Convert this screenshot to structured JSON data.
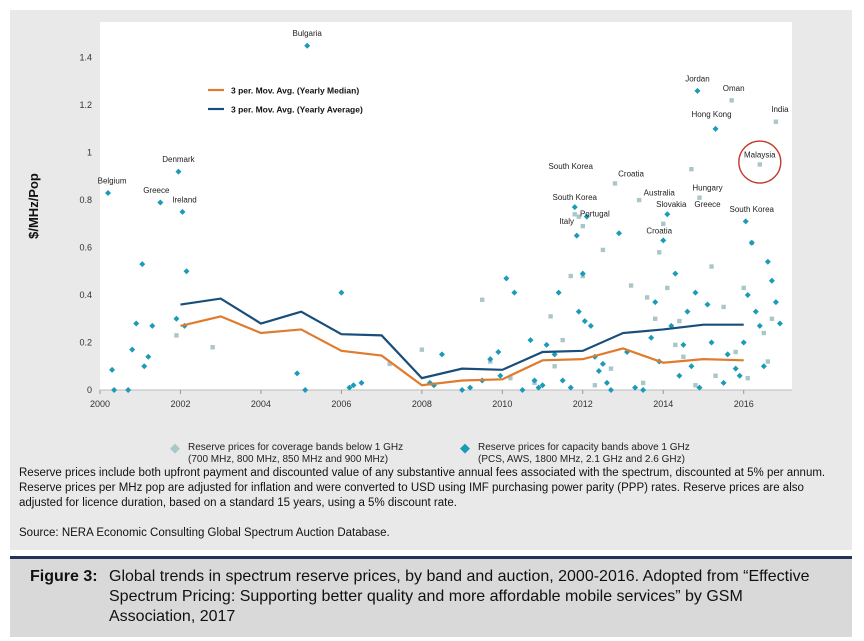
{
  "chart_data": {
    "type": "scatter",
    "ylabel": "$/MHz/Pop",
    "xlabel": "",
    "xlim": [
      2000,
      2017.2
    ],
    "ylim": [
      0,
      1.55
    ],
    "x_ticks": [
      "2000",
      "2002",
      "2004",
      "2006",
      "2008",
      "2010",
      "2012",
      "2014",
      "2016"
    ],
    "y_ticks": [
      "0",
      "0.2",
      "0.4",
      "0.6",
      "0.8",
      "1",
      "1.2",
      "1.4"
    ],
    "grid": false,
    "colors": {
      "orange": "#e07b2e",
      "navy": "#1a4e7a",
      "coverage": "#a9c7c9",
      "capacity": "#1b9bb8",
      "circle": "#c0392b"
    },
    "lines": [
      {
        "name": "3 per. Mov. Avg. (Yearly Median)",
        "color": "#e07b2e",
        "x": [
          2000,
          2001,
          2002,
          2003,
          2004,
          2005,
          2006,
          2007,
          2008,
          2009,
          2010,
          2011,
          2012,
          2013,
          2014,
          2015,
          2016
        ],
        "y": [
          null,
          null,
          0.27,
          0.31,
          0.24,
          0.255,
          0.165,
          0.145,
          0.02,
          0.04,
          0.045,
          0.125,
          0.13,
          0.175,
          0.115,
          0.13,
          0.125
        ]
      },
      {
        "name": "3 per. Mov. Avg. (Yearly Average)",
        "color": "#1a4e7a",
        "x": [
          2000,
          2001,
          2002,
          2003,
          2004,
          2005,
          2006,
          2007,
          2008,
          2009,
          2010,
          2011,
          2012,
          2013,
          2014,
          2015,
          2016
        ],
        "y": [
          null,
          null,
          0.36,
          0.385,
          0.28,
          0.33,
          0.235,
          0.23,
          0.05,
          0.09,
          0.085,
          0.16,
          0.165,
          0.24,
          0.255,
          0.275,
          0.275
        ]
      }
    ],
    "series": [
      {
        "name": "Reserve prices for coverage bands below 1 GHz",
        "marker": "square",
        "points": [
          [
            2001.9,
            0.23
          ],
          [
            2002.8,
            0.18
          ],
          [
            2007.2,
            0.11
          ],
          [
            2008,
            0.17
          ],
          [
            2009.5,
            0.38
          ],
          [
            2009.7,
            0.12
          ],
          [
            2010.2,
            0.05
          ],
          [
            2011.2,
            0.31
          ],
          [
            2011.3,
            0.1
          ],
          [
            2011.5,
            0.21
          ],
          [
            2011.7,
            0.48
          ],
          [
            2011.8,
            0.74
          ],
          [
            2011.9,
            0.73
          ],
          [
            2012,
            0.69
          ],
          [
            2012,
            0.48
          ],
          [
            2012.5,
            0.59
          ],
          [
            2012.7,
            0.09
          ],
          [
            2012.8,
            0.87
          ],
          [
            2013.2,
            0.44
          ],
          [
            2013.4,
            0.8
          ],
          [
            2013.6,
            0.39
          ],
          [
            2013.8,
            0.3
          ],
          [
            2013.9,
            0.58
          ],
          [
            2014,
            0.7
          ],
          [
            2014.1,
            0.43
          ],
          [
            2014.3,
            0.19
          ],
          [
            2014.4,
            0.29
          ],
          [
            2014.5,
            0.14
          ],
          [
            2014.7,
            0.93
          ],
          [
            2014.9,
            0.81
          ],
          [
            2015.2,
            0.52
          ],
          [
            2015.3,
            0.06
          ],
          [
            2015.5,
            0.35
          ],
          [
            2015.7,
            1.22
          ],
          [
            2015.8,
            0.16
          ],
          [
            2016,
            0.43
          ],
          [
            2016.2,
            0.62
          ],
          [
            2016.4,
            0.95
          ],
          [
            2016.5,
            0.24
          ],
          [
            2016.6,
            0.12
          ],
          [
            2016.7,
            0.3
          ],
          [
            2016.8,
            1.13
          ],
          [
            2013.5,
            0.03
          ],
          [
            2014.8,
            0.02
          ],
          [
            2012.3,
            0.02
          ],
          [
            2010.8,
            0.03
          ],
          [
            2016.1,
            0.05
          ]
        ]
      },
      {
        "name": "Reserve prices for capacity bands above 1 GHz",
        "marker": "diamond",
        "points": [
          [
            2000.2,
            0.83
          ],
          [
            2000.3,
            0.085
          ],
          [
            2000.35,
            0
          ],
          [
            2000.7,
            0
          ],
          [
            2000.8,
            0.17
          ],
          [
            2000.9,
            0.28
          ],
          [
            2001.05,
            0.53
          ],
          [
            2001.1,
            0.1
          ],
          [
            2001.2,
            0.14
          ],
          [
            2001.3,
            0.27
          ],
          [
            2001.5,
            0.79
          ],
          [
            2001.95,
            0.92
          ],
          [
            2002.05,
            0.75
          ],
          [
            2002.15,
            0.5
          ],
          [
            2001.9,
            0.3
          ],
          [
            2002.1,
            0.27
          ],
          [
            2004.9,
            0.07
          ],
          [
            2005.1,
            0
          ],
          [
            2005.15,
            1.45
          ],
          [
            2006,
            0.41
          ],
          [
            2006.2,
            0.01
          ],
          [
            2006.3,
            0.02
          ],
          [
            2006.5,
            0.03
          ],
          [
            2008.2,
            0.03
          ],
          [
            2008.5,
            0.15
          ],
          [
            2008.3,
            0.02
          ],
          [
            2009,
            0
          ],
          [
            2009.2,
            0.01
          ],
          [
            2009.5,
            0.04
          ],
          [
            2009.7,
            0.13
          ],
          [
            2009.9,
            0.16
          ],
          [
            2009.95,
            0.06
          ],
          [
            2010.1,
            0.47
          ],
          [
            2010.3,
            0.41
          ],
          [
            2010.5,
            0
          ],
          [
            2010.7,
            0.21
          ],
          [
            2010.8,
            0.04
          ],
          [
            2010.9,
            0.01
          ],
          [
            2011,
            0.02
          ],
          [
            2011.1,
            0.19
          ],
          [
            2011.3,
            0.15
          ],
          [
            2011.4,
            0.41
          ],
          [
            2011.5,
            0.04
          ],
          [
            2011.7,
            0.01
          ],
          [
            2011.8,
            0.77
          ],
          [
            2011.85,
            0.65
          ],
          [
            2012,
            0.49
          ],
          [
            2012.1,
            0.73
          ],
          [
            2011.9,
            0.33
          ],
          [
            2012.05,
            0.29
          ],
          [
            2012.2,
            0.27
          ],
          [
            2012.3,
            0.14
          ],
          [
            2012.4,
            0.08
          ],
          [
            2012.5,
            0.11
          ],
          [
            2012.6,
            0.03
          ],
          [
            2012.7,
            0
          ],
          [
            2012.9,
            0.66
          ],
          [
            2013.1,
            0.16
          ],
          [
            2013.3,
            0.01
          ],
          [
            2013.5,
            0
          ],
          [
            2013.7,
            0.22
          ],
          [
            2013.8,
            0.37
          ],
          [
            2013.9,
            0.12
          ],
          [
            2014,
            0.63
          ],
          [
            2014.1,
            0.74
          ],
          [
            2014.2,
            0.27
          ],
          [
            2014.3,
            0.49
          ],
          [
            2014.4,
            0.06
          ],
          [
            2014.5,
            0.19
          ],
          [
            2014.6,
            0.33
          ],
          [
            2014.7,
            0.1
          ],
          [
            2014.8,
            0.41
          ],
          [
            2014.9,
            0.01
          ],
          [
            2015.1,
            0.36
          ],
          [
            2015.2,
            0.2
          ],
          [
            2015.3,
            1.1
          ],
          [
            2015.5,
            0.03
          ],
          [
            2015.6,
            0.15
          ],
          [
            2015.8,
            0.09
          ],
          [
            2015.9,
            0.06
          ],
          [
            2016,
            0.2
          ],
          [
            2016.05,
            0.71
          ],
          [
            2016.1,
            0.4
          ],
          [
            2016.2,
            0.62
          ],
          [
            2016.3,
            0.33
          ],
          [
            2016.4,
            0.27
          ],
          [
            2016.5,
            0.1
          ],
          [
            2016.6,
            0.54
          ],
          [
            2016.7,
            0.46
          ],
          [
            2016.8,
            0.37
          ],
          [
            2016.9,
            0.28
          ],
          [
            2014.85,
            1.26
          ]
        ]
      }
    ],
    "annotations": [
      {
        "text": "Bulgaria",
        "x": 2005.15,
        "y": 1.49
      },
      {
        "text": "Denmark",
        "x": 2001.95,
        "y": 0.96
      },
      {
        "text": "Belgium",
        "x": 2000.3,
        "y": 0.87
      },
      {
        "text": "Greece",
        "x": 2001.4,
        "y": 0.83
      },
      {
        "text": "Ireland",
        "x": 2002.1,
        "y": 0.79
      },
      {
        "text": "Jordan",
        "x": 2014.85,
        "y": 1.3
      },
      {
        "text": "Oman",
        "x": 2015.75,
        "y": 1.26
      },
      {
        "text": "India",
        "x": 2016.9,
        "y": 1.17
      },
      {
        "text": "Hong Kong",
        "x": 2015.2,
        "y": 1.15
      },
      {
        "text": "Malaysia",
        "x": 2016.4,
        "y": 0.98
      },
      {
        "text": "South Korea",
        "x": 2011.7,
        "y": 0.93
      },
      {
        "text": "Croatia",
        "x": 2013.2,
        "y": 0.9
      },
      {
        "text": "Hungary",
        "x": 2015.1,
        "y": 0.84
      },
      {
        "text": "Australia",
        "x": 2013.9,
        "y": 0.82
      },
      {
        "text": "South Korea",
        "x": 2011.8,
        "y": 0.8
      },
      {
        "text": "Slovakia",
        "x": 2014.2,
        "y": 0.77
      },
      {
        "text": "Greece",
        "x": 2015.1,
        "y": 0.77
      },
      {
        "text": "South Korea",
        "x": 2016.2,
        "y": 0.75
      },
      {
        "text": "Portugal",
        "x": 2012.3,
        "y": 0.73
      },
      {
        "text": "Italy",
        "x": 2011.6,
        "y": 0.7
      },
      {
        "text": "Croatia",
        "x": 2013.9,
        "y": 0.66
      }
    ],
    "highlight_circle_label": "Malaysia"
  },
  "legend": [
    {
      "line1": "Reserve prices for coverage bands below 1 GHz",
      "line2": "(700 MHz, 800 MHz, 850 MHz and 900 MHz)",
      "color": "#a9c7c9"
    },
    {
      "line1": "Reserve prices for capacity bands above 1 GHz",
      "line2": "(PCS, AWS, 1800 MHz, 2.1 GHz and 2.6 GHz)",
      "color": "#1b9bb8"
    }
  ],
  "note": "Reserve prices include both upfront payment and discounted value of any substantive annual fees associated with the spectrum, discounted at 5% per annum. Reserve prices per MHz pop are adjusted for inflation and were converted to USD using IMF purchasing power parity (PPP) rates. Reserve prices are also adjusted for licence duration, based on a standard 15 years, using a 5% discount rate.",
  "source": "Source: NERA Economic Consulting Global Spectrum Auction Database.",
  "caption": {
    "label": "Figure 3:",
    "body": "Global trends in spectrum reserve prices, by band and auction, 2000-2016. Adopted from “Effective Spectrum Pricing: Supporting better quality and more affordable mobile services” by GSM Association, 2017"
  }
}
